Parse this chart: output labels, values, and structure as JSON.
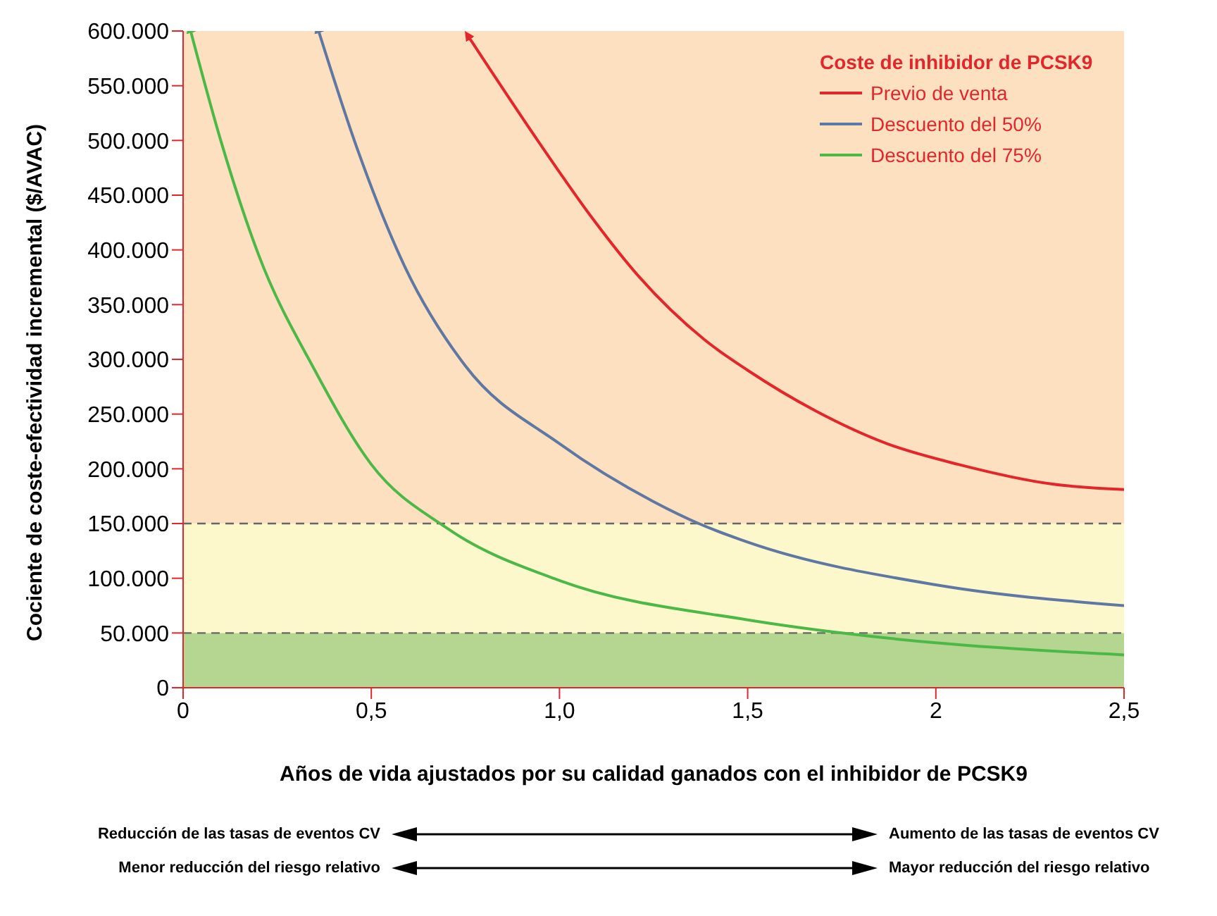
{
  "chart_data": {
    "type": "line",
    "xlabel": "Años de vida ajustados por su calidad ganados con el inhibidor de PCSK9",
    "ylabel": "Cociente de coste-efectividad incremental ($/AVAC)",
    "legend_title": "Coste de inhibidor de PCSK9",
    "legend": "top right",
    "grid": false,
    "marker": "none",
    "line_style": "solid",
    "xlim": [
      0,
      2.5
    ],
    "xticks": [
      0,
      {
        "value": 0.5,
        "label": "0,5"
      },
      {
        "value": 1,
        "label": "1,0"
      },
      {
        "value": 1.5,
        "label": "1,5"
      },
      2,
      {
        "value": 2.5,
        "label": "2,5"
      }
    ],
    "ylim": [
      0,
      600000
    ],
    "yticks": [
      0,
      {
        "value": 50000,
        "label": "50.000"
      },
      {
        "value": 100000,
        "label": "100.000"
      },
      {
        "value": 150000,
        "label": "150.000"
      },
      {
        "value": 200000,
        "label": "200.000"
      },
      {
        "value": 250000,
        "label": "250.000"
      },
      {
        "value": 300000,
        "label": "300.000"
      },
      {
        "value": 350000,
        "label": "350.000"
      },
      {
        "value": 400000,
        "label": "400.000"
      },
      {
        "value": 450000,
        "label": "450.000"
      },
      {
        "value": 500000,
        "label": "500.000"
      },
      {
        "value": 550000,
        "label": "550.000"
      },
      {
        "value": 600000,
        "label": "600.000"
      }
    ],
    "bands": [
      {
        "axis": "y",
        "from": 0,
        "to": 50000,
        "color": "#b5d691"
      },
      {
        "axis": "y",
        "from": 50000,
        "to": 150000,
        "color": "#fdf8cc"
      },
      {
        "axis": "y",
        "from": 150000,
        "to": 600000,
        "color": "#fde0bf"
      }
    ],
    "ref_lines": [
      {
        "axis": "y",
        "value": 50000,
        "color": "#666666",
        "line_style": "dashed"
      },
      {
        "axis": "y",
        "value": 150000,
        "color": "#666666",
        "line_style": "dashed"
      }
    ],
    "series": [
      {
        "name": "Previo de venta",
        "color": "#e3262b",
        "x": [
          0.76,
          0.96,
          1.085,
          1.21,
          1.385,
          1.5,
          1.68,
          1.87,
          2.06,
          2.31,
          2.5
        ],
        "values": [
          594000,
          491000,
          430000,
          376000,
          318000,
          290000,
          253000,
          223000,
          204000,
          186000,
          181000
        ]
      },
      {
        "name": "Descuento del 50%",
        "color": "#5e77a3",
        "x": [
          0.36,
          0.46,
          0.59,
          0.75,
          1,
          1.25,
          1.37,
          1.5,
          2,
          2.5
        ],
        "values": [
          600000,
          495000,
          384000,
          294000,
          223000,
          170000,
          150000,
          133000,
          94000,
          75000
        ]
      },
      {
        "name": "Descuento del 75%",
        "color": "#4cb848",
        "x": [
          0.02,
          0.1,
          0.2,
          0.35,
          0.5,
          0.7,
          1,
          1.5,
          1.75,
          2,
          2.5
        ],
        "values": [
          600000,
          500000,
          396000,
          290000,
          204000,
          146000,
          98000,
          62000,
          50000,
          41000,
          30000
        ]
      }
    ],
    "annotations": [
      "Reducción de las tasas de eventos CV",
      "Aumento de las tasas de eventos CV",
      "Menor reducción del riesgo relativo",
      "Mayor reducción del riesgo relativo"
    ]
  }
}
